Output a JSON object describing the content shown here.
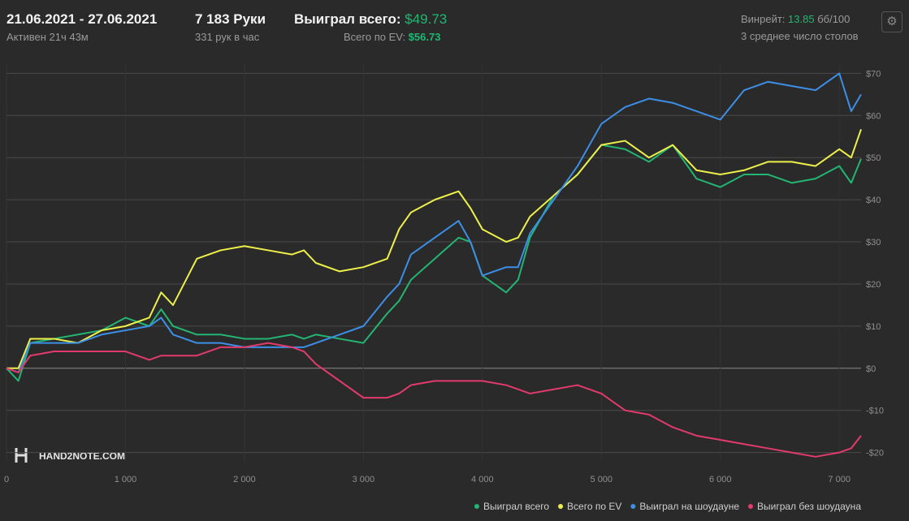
{
  "header": {
    "dates": "21.06.2021 - 27.06.2021",
    "hands": "7 183 Руки",
    "won_label": "Выиграл всего:",
    "won_value": "$49.73",
    "active": "Активен 21ч 43м",
    "hands_per_hour": "331 рук в час",
    "ev_label": "Всего по EV:",
    "ev_value": "$56.73",
    "winrate_label": "Винрейт:",
    "winrate_value": "13.85",
    "winrate_unit": "бб/100",
    "tables": "3 среднее число столов",
    "logo": "HAND2NOTE.COM"
  },
  "chart_data": {
    "type": "line",
    "x": [
      0,
      100,
      200,
      400,
      600,
      800,
      1000,
      1200,
      1300,
      1400,
      1600,
      1800,
      2000,
      2200,
      2400,
      2500,
      2600,
      2800,
      3000,
      3200,
      3300,
      3400,
      3600,
      3800,
      3900,
      4000,
      4200,
      4300,
      4400,
      4600,
      4800,
      5000,
      5200,
      5400,
      5600,
      5800,
      6000,
      6200,
      6400,
      6600,
      6800,
      7000,
      7100,
      7183
    ],
    "series": [
      {
        "name": "Выиграл всего",
        "color": "#22b573",
        "values": [
          0,
          -3,
          6,
          7,
          8,
          9,
          12,
          10,
          14,
          10,
          8,
          8,
          7,
          7,
          8,
          7,
          8,
          7,
          6,
          13,
          16,
          21,
          26,
          31,
          30,
          22,
          18,
          21,
          31,
          41,
          46,
          53,
          52,
          49,
          53,
          45,
          43,
          46,
          46,
          44,
          45,
          48,
          44,
          49.73
        ]
      },
      {
        "name": "Всего по EV",
        "color": "#eef04a",
        "values": [
          0,
          0,
          7,
          7,
          6,
          9,
          10,
          12,
          18,
          15,
          26,
          28,
          29,
          28,
          27,
          28,
          25,
          23,
          24,
          26,
          33,
          37,
          40,
          42,
          38,
          33,
          30,
          31,
          36,
          41,
          46,
          53,
          54,
          50,
          53,
          47,
          46,
          47,
          49,
          49,
          48,
          52,
          50,
          56.73
        ]
      },
      {
        "name": "Выиграл на шоудауне",
        "color": "#3d8fe6",
        "values": [
          0,
          -1,
          6,
          6,
          6,
          8,
          9,
          10,
          12,
          8,
          6,
          6,
          5,
          5,
          5,
          5,
          6,
          8,
          10,
          17,
          20,
          27,
          31,
          35,
          30,
          22,
          24,
          24,
          32,
          40,
          48,
          58,
          62,
          64,
          63,
          61,
          59,
          66,
          68,
          67,
          66,
          70,
          61,
          65
        ]
      },
      {
        "name": "Выиграл без шоудауна",
        "color": "#e23a6c",
        "values": [
          0,
          -1,
          3,
          4,
          4,
          4,
          4,
          2,
          3,
          3,
          3,
          5,
          5,
          6,
          5,
          4,
          1,
          -3,
          -7,
          -7,
          -6,
          -4,
          -3,
          -3,
          -3,
          -3,
          -4,
          -5,
          -6,
          -5,
          -4,
          -6,
          -10,
          -11,
          -14,
          -16,
          -17,
          -18,
          -19,
          -20,
          -21,
          -20,
          -19,
          -16
        ]
      }
    ],
    "xlim": [
      0,
      7183
    ],
    "ylim": [
      -22,
      72
    ],
    "xticks": [
      0,
      {
        "value": 1000,
        "label": "1 000"
      },
      {
        "value": 2000,
        "label": "2 000"
      },
      {
        "value": 3000,
        "label": "3 000"
      },
      {
        "value": 4000,
        "label": "4 000"
      },
      {
        "value": 5000,
        "label": "5 000"
      },
      {
        "value": 6000,
        "label": "6 000"
      },
      {
        "value": 7000,
        "label": "7 000"
      }
    ],
    "yticks": [
      {
        "value": -20,
        "label": "-$20"
      },
      {
        "value": -10,
        "label": "-$10"
      },
      {
        "value": 0,
        "label": "$0"
      },
      {
        "value": 10,
        "label": "$10"
      },
      {
        "value": 20,
        "label": "$20"
      },
      {
        "value": 30,
        "label": "$30"
      },
      {
        "value": 40,
        "label": "$40"
      },
      {
        "value": 50,
        "label": "$50"
      },
      {
        "value": 60,
        "label": "$60"
      },
      {
        "value": 70,
        "label": "$70"
      }
    ],
    "grid": true
  }
}
